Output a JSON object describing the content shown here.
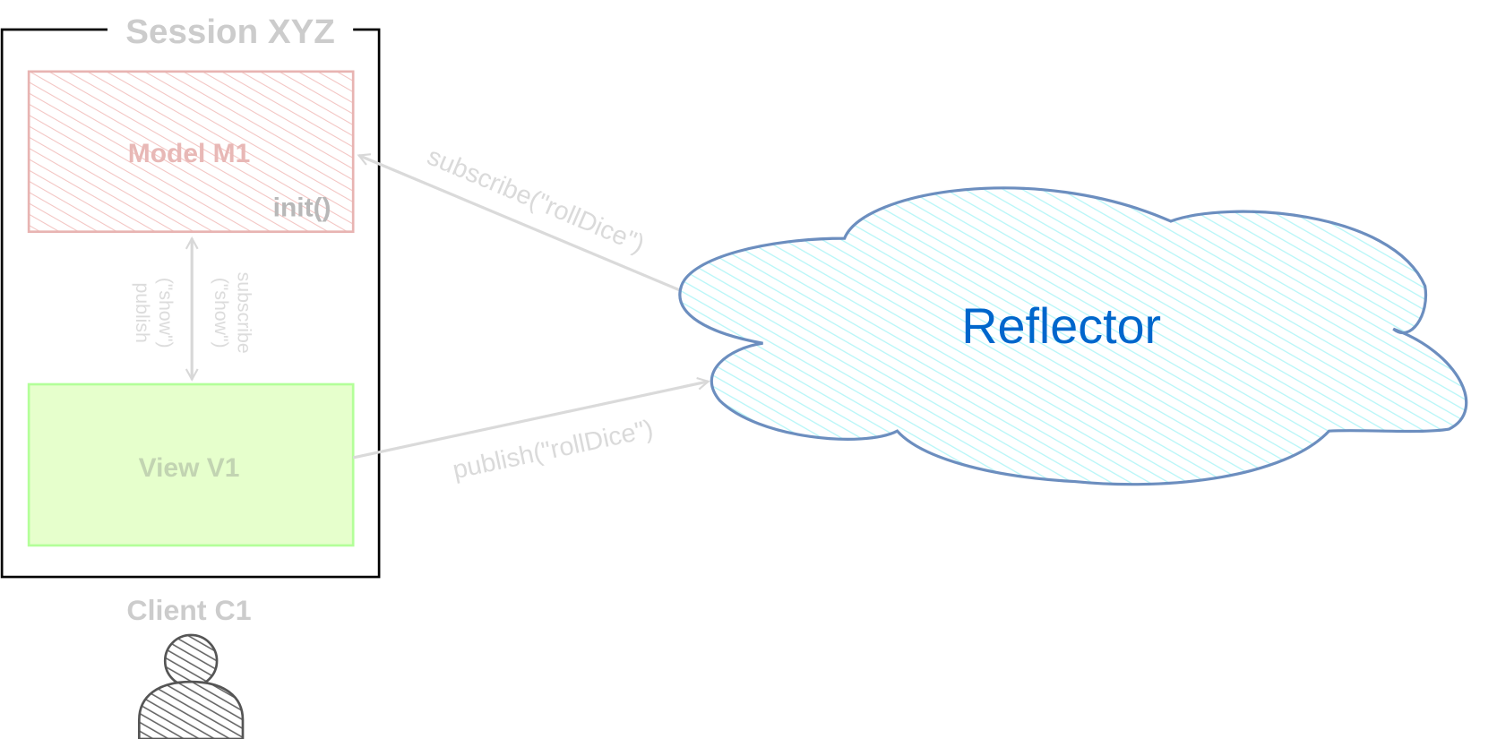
{
  "session": {
    "title": "Session XYZ"
  },
  "model": {
    "label": "Model M1",
    "method": "init()",
    "fill": "#f8cecc",
    "stroke": "#e8b4b2"
  },
  "view": {
    "label": "View V1",
    "fill": "#e6ffcc",
    "stroke": "#b3ff99"
  },
  "local_arrow": {
    "left_line1": "publish",
    "left_line2": "(\"show\")",
    "right_line1": "subscribe",
    "right_line2": "(\"show\")"
  },
  "subscribe_arrow": {
    "label": "subscribe(\"rollDice\")"
  },
  "publish_arrow": {
    "label": "publish(\"rollDice\")"
  },
  "reflector": {
    "label": "Reflector",
    "text_color": "#0066cc",
    "fill": "#ccffff",
    "stroke": "#6c8ebf"
  },
  "client": {
    "label": "Client C1",
    "icon": "user-icon"
  }
}
